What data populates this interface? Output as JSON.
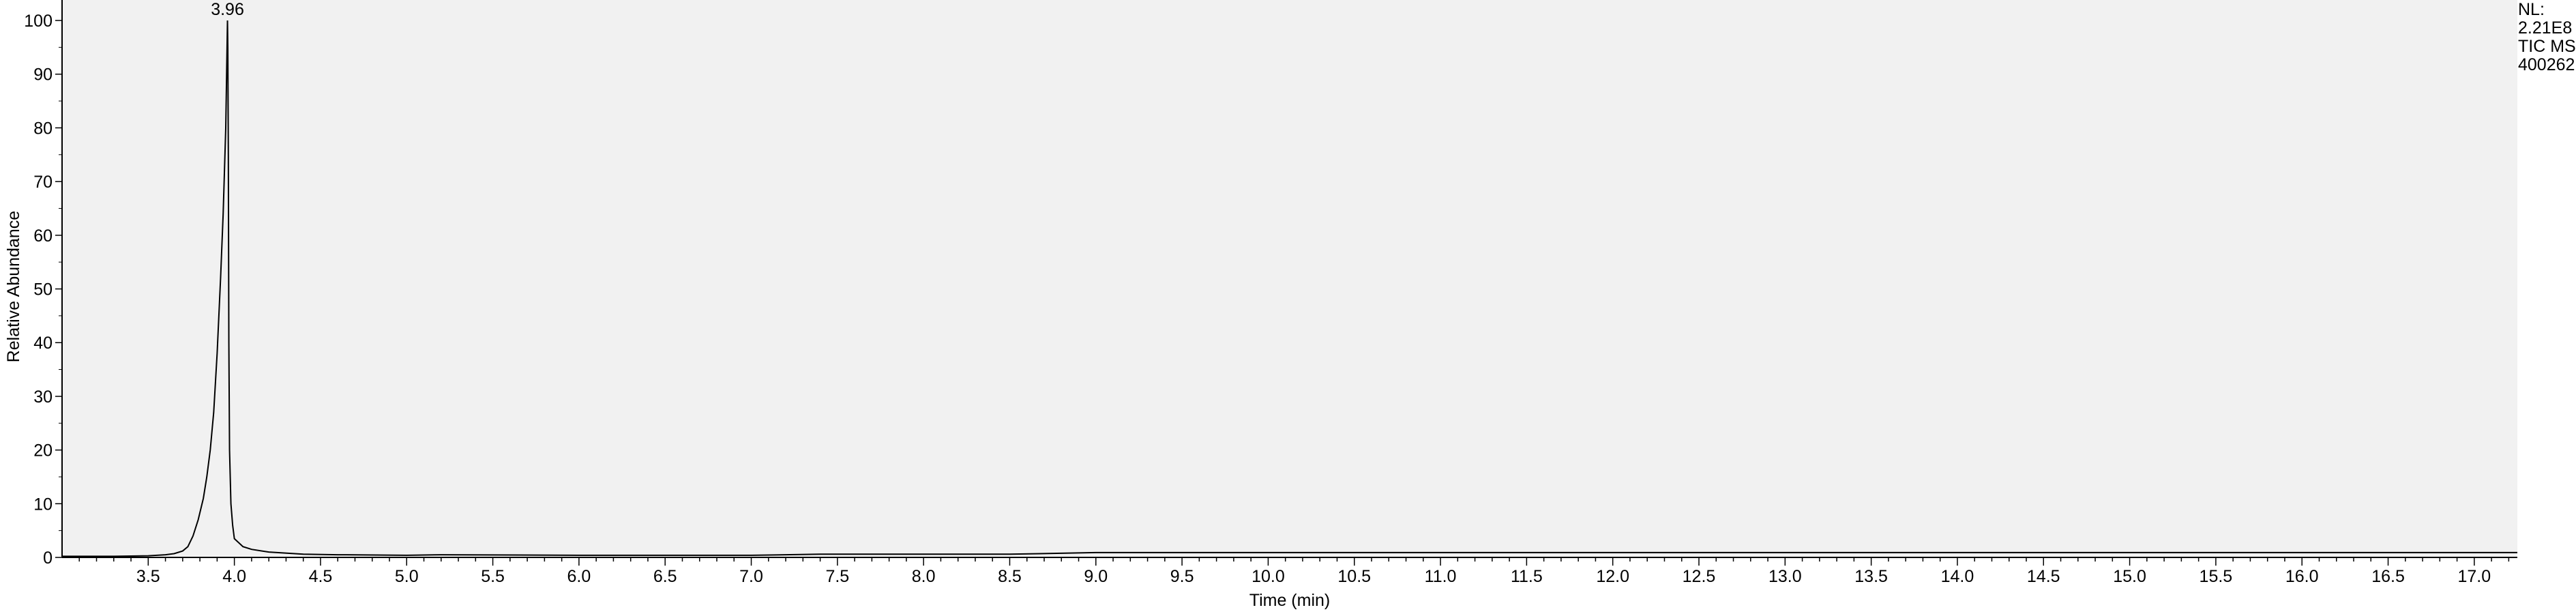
{
  "chart_data": {
    "type": "line",
    "title": "",
    "xlabel": "Time (min)",
    "ylabel": "Relative Abundance",
    "xlim": [
      3.0,
      17.25
    ],
    "ylim": [
      0,
      100
    ],
    "xticks": [
      3.5,
      4.0,
      4.5,
      5.0,
      5.5,
      6.0,
      6.5,
      7.0,
      7.5,
      8.0,
      8.5,
      9.0,
      9.5,
      10.0,
      10.5,
      11.0,
      11.5,
      12.0,
      12.5,
      13.0,
      13.5,
      14.0,
      14.5,
      15.0,
      15.5,
      16.0,
      16.5,
      17.0
    ],
    "xtick_labels": [
      "3.5",
      "4.0",
      "4.5",
      "5.0",
      "5.5",
      "6.0",
      "6.5",
      "7.0",
      "7.5",
      "8.0",
      "8.5",
      "9.0",
      "9.5",
      "10.0",
      "10.5",
      "11.0",
      "11.5",
      "12.0",
      "12.5",
      "13.0",
      "13.5",
      "14.0",
      "14.5",
      "15.0",
      "15.5",
      "16.0",
      "16.5",
      "17.0"
    ],
    "yticks": [
      0,
      10,
      20,
      30,
      40,
      50,
      60,
      70,
      80,
      90,
      100
    ],
    "ytick_labels": [
      "0",
      "10",
      "20",
      "30",
      "40",
      "50",
      "60",
      "70",
      "80",
      "90",
      "100"
    ],
    "grid": false,
    "plot_background": "#f1f1f1",
    "line_color": "#000000",
    "series": [
      {
        "x": [
          3.0,
          3.3,
          3.5,
          3.6,
          3.65,
          3.7,
          3.73,
          3.76,
          3.79,
          3.82,
          3.84,
          3.86,
          3.88,
          3.9,
          3.92,
          3.935,
          3.95,
          3.96,
          3.962,
          3.965,
          3.968,
          3.972,
          3.98,
          3.99,
          4.0,
          4.05,
          4.1,
          4.2,
          4.4,
          4.6,
          5.0,
          5.2,
          6.0,
          7.0,
          7.4,
          8.0,
          8.5,
          9.0,
          10.0,
          12.0,
          14.0,
          16.0,
          17.25
        ],
        "y": [
          0.2,
          0.2,
          0.3,
          0.5,
          0.7,
          1.2,
          2.0,
          4.0,
          7.0,
          11.0,
          15.0,
          20.0,
          27.0,
          38.0,
          52.0,
          64.0,
          80.0,
          100.0,
          95.0,
          75.0,
          40.0,
          20.0,
          10.0,
          6.0,
          3.5,
          2.0,
          1.5,
          1.0,
          0.6,
          0.5,
          0.4,
          0.5,
          0.4,
          0.4,
          0.6,
          0.6,
          0.6,
          0.9,
          0.9,
          0.9,
          0.9,
          0.9,
          0.9
        ]
      }
    ],
    "annotations": [
      {
        "x": 3.96,
        "y": 100,
        "text": "3.96"
      }
    ]
  },
  "info_label": {
    "lines": [
      "NL:",
      "2.21E8",
      "TIC MS",
      "400262"
    ]
  }
}
